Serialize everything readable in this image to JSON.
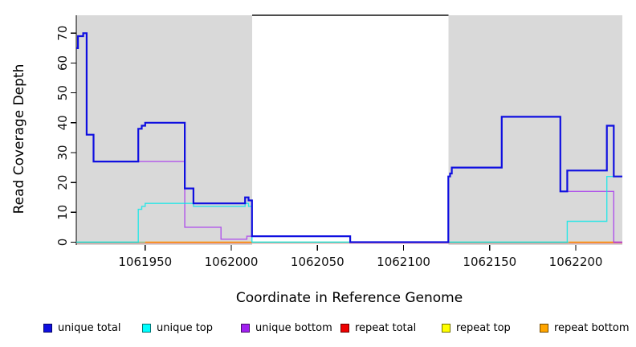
{
  "chart_data": {
    "type": "line",
    "subtype": "step-coverage",
    "title": "",
    "xlabel": "Coordinate in Reference Genome",
    "ylabel": "Read Coverage Depth",
    "xlim": [
      1061910,
      1062227
    ],
    "ylim": [
      0,
      76
    ],
    "x_ticks": [
      "1061950",
      "1062000",
      "1062050",
      "1062100",
      "1062150",
      "1062200"
    ],
    "x_tick_values": [
      1061950,
      1062000,
      1062050,
      1062100,
      1062150,
      1062200
    ],
    "y_ticks": [
      "0",
      "10",
      "20",
      "30",
      "40",
      "50",
      "60",
      "70"
    ],
    "y_tick_values": [
      0,
      10,
      20,
      30,
      40,
      50,
      60,
      70
    ],
    "grid": false,
    "legend_position": "bottom",
    "shaded_regions": [
      {
        "from": 1061910,
        "to": 1062012,
        "color": "#d9d9d9"
      },
      {
        "from": 1062126,
        "to": 1062227,
        "color": "#d9d9d9"
      }
    ],
    "series": [
      {
        "name": "unique total",
        "color": "#0f0fe0",
        "width": 2.2,
        "opacity": 1,
        "steps": [
          [
            1061910,
            65
          ],
          [
            1061911,
            69
          ],
          [
            1061914,
            70
          ],
          [
            1061916,
            36
          ],
          [
            1061920,
            27
          ],
          [
            1061946,
            38
          ],
          [
            1061948,
            39
          ],
          [
            1061950,
            40
          ],
          [
            1061973,
            18
          ],
          [
            1061978,
            13
          ],
          [
            1062008,
            15
          ],
          [
            1062010,
            14
          ],
          [
            1062012,
            2
          ],
          [
            1062069,
            0
          ],
          [
            1062126,
            22
          ],
          [
            1062127,
            23
          ],
          [
            1062128,
            25
          ],
          [
            1062157,
            42
          ],
          [
            1062191,
            17
          ],
          [
            1062195,
            24
          ],
          [
            1062218,
            39
          ],
          [
            1062222,
            22
          ],
          [
            1062227,
            22
          ]
        ]
      },
      {
        "name": "unique top",
        "color": "#00e8e8",
        "width": 1.4,
        "opacity": 0.8,
        "steps": [
          [
            1061910,
            0
          ],
          [
            1061946,
            11
          ],
          [
            1061948,
            12
          ],
          [
            1061950,
            13
          ],
          [
            1061978,
            12
          ],
          [
            1062008,
            13
          ],
          [
            1062010,
            12
          ],
          [
            1062012,
            0
          ],
          [
            1062195,
            7
          ],
          [
            1062218,
            22
          ],
          [
            1062227,
            22
          ]
        ]
      },
      {
        "name": "unique bottom",
        "color": "#a020f0",
        "width": 1.4,
        "opacity": 0.72,
        "steps": [
          [
            1061910,
            65
          ],
          [
            1061911,
            69
          ],
          [
            1061914,
            70
          ],
          [
            1061916,
            36
          ],
          [
            1061920,
            27
          ],
          [
            1061973,
            5
          ],
          [
            1061994,
            1
          ],
          [
            1062009,
            2
          ],
          [
            1062069,
            0
          ],
          [
            1062126,
            22
          ],
          [
            1062127,
            23
          ],
          [
            1062128,
            25
          ],
          [
            1062157,
            42
          ],
          [
            1062191,
            17
          ],
          [
            1062222,
            0
          ],
          [
            1062227,
            0
          ]
        ]
      },
      {
        "name": "repeat total",
        "color": "#ee0000",
        "width": 1.2,
        "opacity": 0.4,
        "steps": [
          [
            1061910,
            0
          ],
          [
            1062227,
            0
          ]
        ]
      },
      {
        "name": "repeat top",
        "color": "#ffff00",
        "width": 1.2,
        "opacity": 1,
        "steps": [
          [
            1061910,
            0
          ],
          [
            1062227,
            0
          ]
        ]
      },
      {
        "name": "repeat bottom",
        "color": "#ffa500",
        "width": 1.2,
        "opacity": 1,
        "steps": [
          [
            1061910,
            0
          ],
          [
            1062227,
            0
          ]
        ]
      }
    ],
    "baseline_visible_segments": [
      {
        "from": 1061910,
        "to": 1061950,
        "color": "#8fce8f"
      },
      {
        "from": 1061950,
        "to": 1062012,
        "color": "#ff9200"
      },
      {
        "from": 1062012,
        "to": 1062196,
        "color": "#8fce8f"
      },
      {
        "from": 1062196,
        "to": 1062222,
        "color": "#ff9200"
      },
      {
        "from": 1062222,
        "to": 1062227,
        "color": "#e0708a"
      }
    ],
    "legend": [
      {
        "label": "unique total",
        "color": "#0f0fe0"
      },
      {
        "label": "unique top",
        "color": "#00ffff"
      },
      {
        "label": "unique bottom",
        "color": "#a020f0"
      },
      {
        "label": "repeat total",
        "color": "#ee0000"
      },
      {
        "label": "repeat top",
        "color": "#ffff00"
      },
      {
        "label": "repeat bottom",
        "color": "#ffa500"
      }
    ]
  }
}
